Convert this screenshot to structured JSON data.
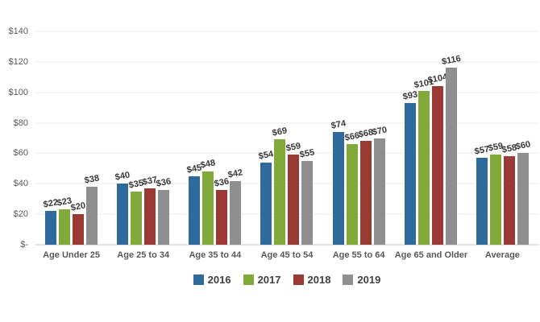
{
  "chart_data": {
    "type": "bar",
    "title": "",
    "xlabel": "",
    "ylabel": "",
    "categories": [
      "Age Under 25",
      "Age 25 to 34",
      "Age 35 to 44",
      "Age 45 to 54",
      "Age 55 to 64",
      "Age 65 and Older",
      "Average"
    ],
    "series": [
      {
        "name": "2016",
        "color": "#2e6a9c",
        "values": [
          22,
          40,
          45,
          54,
          74,
          93,
          57
        ],
        "labels": [
          "$22",
          "$40",
          "$45",
          "$54",
          "$74",
          "$93",
          "$57"
        ]
      },
      {
        "name": "2017",
        "color": "#82aa3b",
        "values": [
          23,
          35,
          48,
          69,
          66,
          101,
          59
        ],
        "labels": [
          "$23",
          "$35",
          "$48",
          "$69",
          "$66",
          "$101",
          "$59"
        ]
      },
      {
        "name": "2018",
        "color": "#9b3a35",
        "values": [
          20,
          37,
          36,
          59,
          68,
          104,
          58
        ],
        "labels": [
          "$20",
          "$37",
          "$36",
          "$59",
          "$68",
          "$104",
          "$58"
        ]
      },
      {
        "name": "2019",
        "color": "#8f8f8f",
        "values": [
          38,
          36,
          42,
          55,
          70,
          116,
          60
        ],
        "labels": [
          "$38",
          "$36",
          "$42",
          "$55",
          "$70",
          "$116",
          "$60"
        ]
      }
    ],
    "ylim": [
      0,
      140
    ],
    "ytick_step": 20,
    "ytick_labels": [
      "$-",
      "$20",
      "$40",
      "$60",
      "$80",
      "$100",
      "$120",
      "$140"
    ],
    "grid": true,
    "legend_position": "bottom",
    "legend_entries": [
      "2016",
      "2017",
      "2018",
      "2019"
    ]
  }
}
